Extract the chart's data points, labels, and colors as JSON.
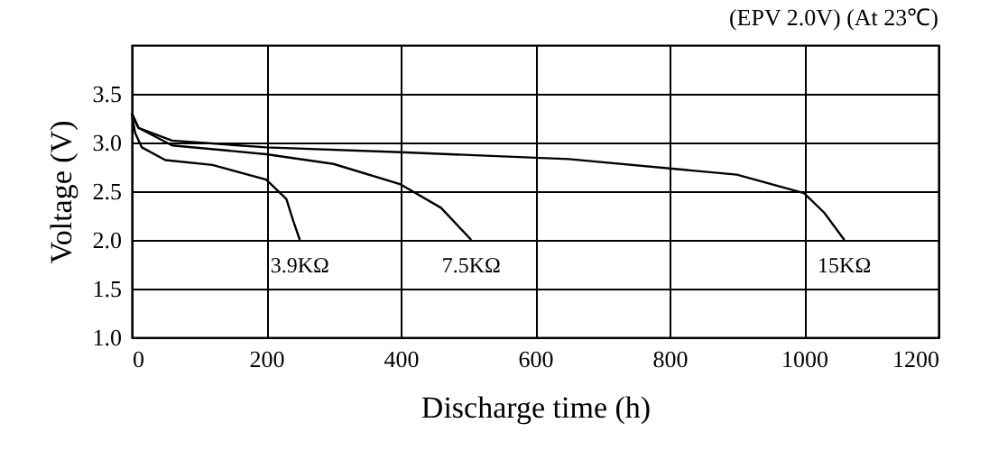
{
  "chart_data": {
    "type": "line",
    "title": "(EPV 2.0V) (At 23℃)",
    "xlabel": "Discharge time (h)",
    "ylabel": "Voltage (V)",
    "xlim": [
      0,
      1200
    ],
    "xticks": [
      0,
      200,
      400,
      600,
      800,
      1000,
      1200
    ],
    "ylim": [
      1,
      4
    ],
    "yticks": [
      {
        "value": 1,
        "label": "1.0"
      },
      {
        "value": 1.5,
        "label": "1.5"
      },
      {
        "value": 2,
        "label": "2.0"
      },
      {
        "value": 2.5,
        "label": "2.5"
      },
      {
        "value": 3,
        "label": "3.0"
      },
      {
        "value": 3.5,
        "label": "3.5"
      }
    ],
    "grid": true,
    "legend": false,
    "marker": "none",
    "line_style": "solid",
    "series": [
      {
        "name": "3.9KΩ",
        "color": "#000000",
        "x": [
          0,
          5,
          15,
          50,
          120,
          200,
          230,
          240,
          250
        ],
        "values": [
          3.3,
          3.1,
          2.95,
          2.82,
          2.77,
          2.62,
          2.42,
          2.2,
          2.0
        ]
      },
      {
        "name": "7.5KΩ",
        "color": "#000000",
        "x": [
          0,
          10,
          60,
          200,
          300,
          400,
          460,
          505
        ],
        "values": [
          3.3,
          3.15,
          2.97,
          2.88,
          2.78,
          2.57,
          2.33,
          2.0
        ]
      },
      {
        "name": "15KΩ",
        "color": "#000000",
        "x": [
          0,
          10,
          60,
          200,
          400,
          650,
          900,
          1000,
          1030,
          1060
        ],
        "values": [
          3.3,
          3.15,
          3.02,
          2.95,
          2.9,
          2.83,
          2.67,
          2.48,
          2.28,
          2.0
        ]
      }
    ]
  }
}
